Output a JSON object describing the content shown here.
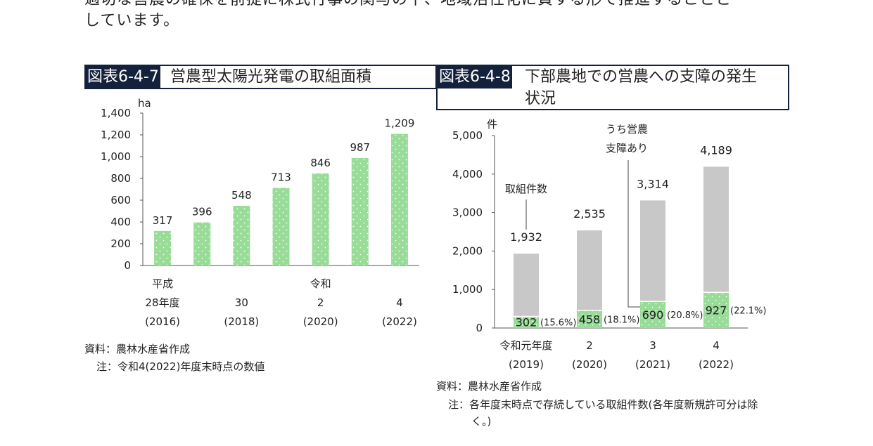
{
  "intro": {
    "line1": "適切な営農の確保を前提に株式行事の関与の下、地域活性化に資する形で推進することと",
    "line2": "しています。"
  },
  "figure_left": {
    "number": "図表6-4-7",
    "title": "営農型太陽光発電の取組面積",
    "source": "資料：農林水産省作成",
    "note": "注：令和4(2022)年度末時点の数値"
  },
  "figure_right": {
    "number": "図表6-4-8",
    "title_line1": "下部農地での営農への支障の発生",
    "title_line2": "状況",
    "source": "資料：農林水産省作成",
    "note_line1": "注：各年度末時点で存続している取組件数(各年度新規許可分は除",
    "note_line2": "く。)"
  },
  "chart_data": [
    {
      "type": "bar",
      "unit": "ha",
      "ylim": [
        0,
        1400
      ],
      "yticks": [
        "0",
        "200",
        "400",
        "600",
        "800",
        "1,000",
        "1,200",
        "1,400"
      ],
      "values": [
        317,
        396,
        548,
        713,
        846,
        987,
        1209
      ],
      "value_labels": [
        "317",
        "396",
        "548",
        "713",
        "846",
        "987",
        "1,209"
      ],
      "x_tick_labels": [
        {
          "slot": 0,
          "lines": [
            "平成",
            "28年度",
            "(2016)"
          ]
        },
        {
          "slot": 2,
          "lines": [
            "",
            "30",
            "(2018)"
          ]
        },
        {
          "slot": 4,
          "lines": [
            "令和",
            "2",
            "(2020)"
          ]
        },
        {
          "slot": 6,
          "lines": [
            "",
            "4",
            "(2022)"
          ]
        }
      ],
      "bar_color": "#98dc98",
      "grid": false
    },
    {
      "type": "bar",
      "stacked": true,
      "unit": "件",
      "ylim": [
        0,
        5000
      ],
      "yticks": [
        "0",
        "1,000",
        "2,000",
        "3,000",
        "4,000",
        "5,000"
      ],
      "categories": [
        [
          "令和元年度",
          "(2019)"
        ],
        [
          "2",
          "(2020)"
        ],
        [
          "3",
          "(2021)"
        ],
        [
          "4",
          "(2022)"
        ]
      ],
      "totals": [
        1932,
        2535,
        3314,
        4189
      ],
      "total_labels": [
        "1,932",
        "2,535",
        "3,314",
        "4,189"
      ],
      "hindered": [
        302,
        458,
        690,
        927
      ],
      "hindered_labels": [
        "302",
        "458",
        "690",
        "927"
      ],
      "hindered_shares": [
        "(15.6%)",
        "(18.1%)",
        "(20.8%)",
        "(22.1%)"
      ],
      "annotation_total": "取組件数",
      "annotation_hindered_line1": "うち営農",
      "annotation_hindered_line2": "支障あり",
      "colors": {
        "total": "#c8c8c8",
        "hindered": "#98dc98"
      },
      "grid": false
    }
  ]
}
